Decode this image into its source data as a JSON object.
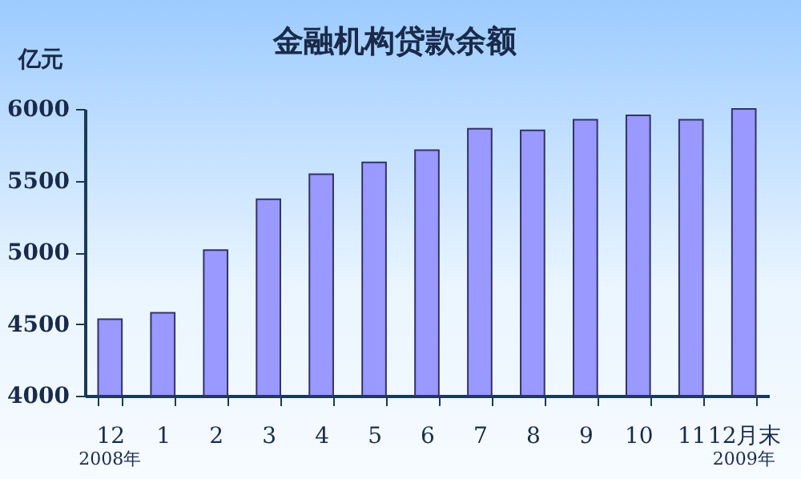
{
  "chart_data": {
    "type": "bar",
    "title": "金融机构贷款余额",
    "ylabel": "亿元",
    "categories": [
      "12",
      "1",
      "2",
      "3",
      "4",
      "5",
      "6",
      "7",
      "8",
      "9",
      "10",
      "11",
      "12月末"
    ],
    "values": [
      4534,
      4578,
      5015,
      5370,
      5545,
      5627,
      5712,
      5862,
      5850,
      5925,
      5955,
      5925,
      6000
    ],
    "color": "#9999ff",
    "ylim": [
      4000,
      6000
    ],
    "yticks": [
      4000,
      4500,
      5000,
      5500,
      6000
    ],
    "grid": false,
    "annotations": [
      "2008年",
      "2009年"
    ]
  }
}
